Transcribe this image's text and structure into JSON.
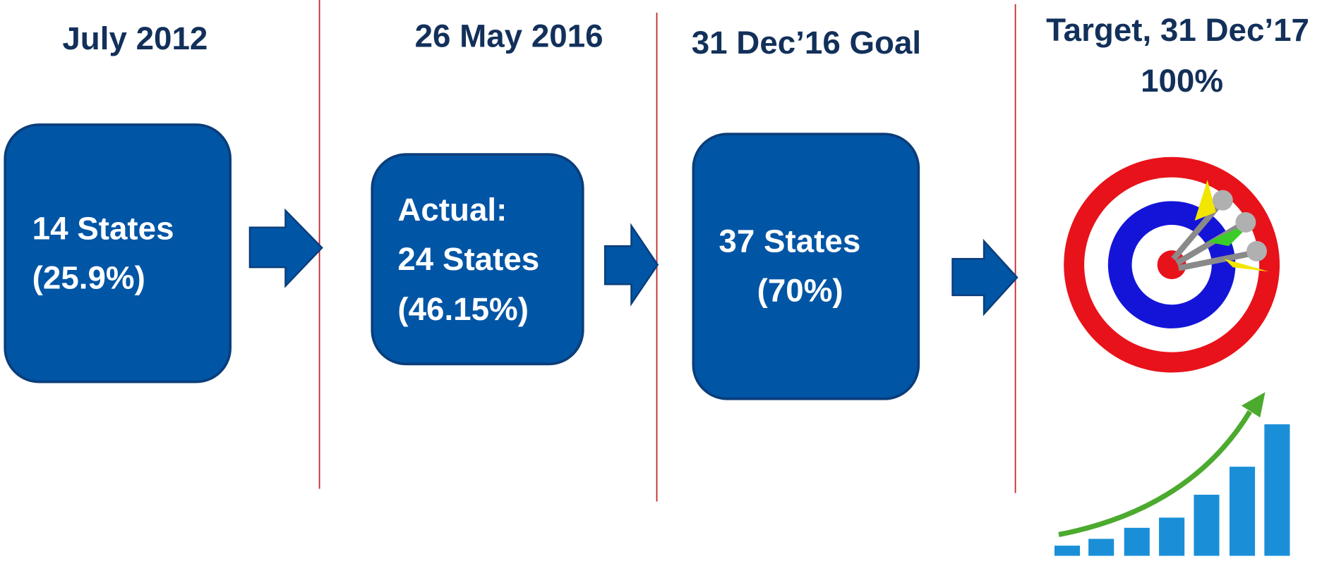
{
  "stages": [
    {
      "heading": [
        "July 2012"
      ],
      "box": [
        "14 States",
        "(25.9%)"
      ]
    },
    {
      "heading": [
        "26 May 2016"
      ],
      "box": [
        "Actual:",
        "24 States",
        "(46.15%)"
      ]
    },
    {
      "heading": [
        "31 Dec’16 Goal"
      ],
      "box": [
        "37 States",
        "(70%)"
      ]
    },
    {
      "heading": [
        "Target, 31 Dec’17",
        "100%"
      ]
    }
  ]
}
